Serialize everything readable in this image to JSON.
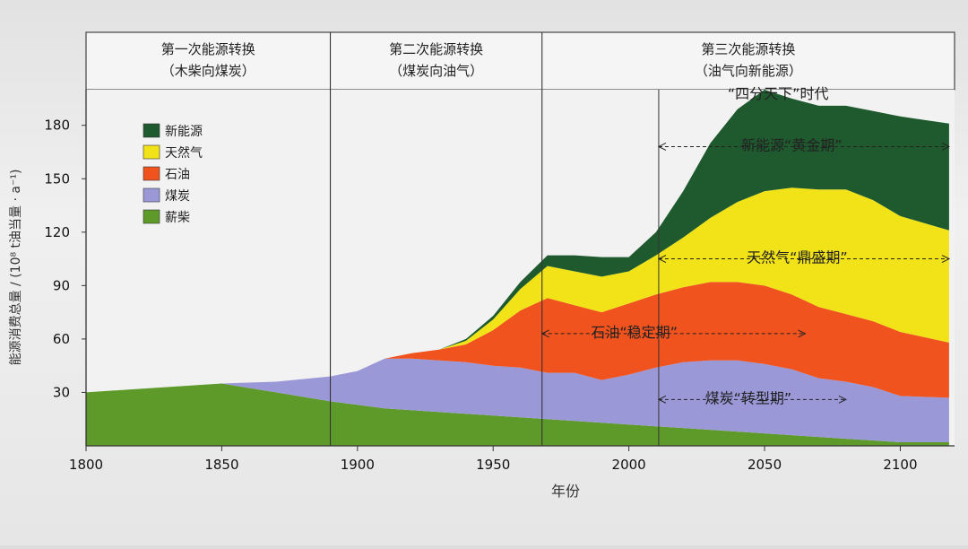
{
  "chart_data": {
    "type": "area",
    "stacked": true,
    "xlabel": "年份",
    "ylabel": "能源消费总量 / (10⁸ t油当量 · a⁻¹)",
    "xlim": [
      1800,
      2120
    ],
    "ylim": [
      0,
      200
    ],
    "x_ticks": [
      1800,
      1850,
      1900,
      1950,
      2000,
      2050,
      2100
    ],
    "y_ticks": [
      30,
      60,
      90,
      120,
      150,
      180
    ],
    "phases": [
      {
        "title": "第一次能源转换",
        "subtitle": "（木柴向煤炭）",
        "start": 1800,
        "end": 1890
      },
      {
        "title": "第二次能源转换",
        "subtitle": "（煤炭向油气）",
        "start": 1890,
        "end": 1968
      },
      {
        "title": "第三次能源转换",
        "subtitle": "（油气向新能源）",
        "start": 1968,
        "end": 2120
      }
    ],
    "x": [
      1800,
      1850,
      1870,
      1890,
      1900,
      1910,
      1920,
      1930,
      1940,
      1950,
      1960,
      1970,
      1980,
      1990,
      2000,
      2010,
      2020,
      2030,
      2040,
      2050,
      2060,
      2070,
      2080,
      2090,
      2100,
      2118
    ],
    "series": [
      {
        "name": "薪柴",
        "color": "#5e9a2a",
        "values": [
          30,
          35,
          30,
          25,
          23,
          21,
          20,
          19,
          18,
          17,
          16,
          15,
          14,
          13,
          12,
          11,
          10,
          9,
          8,
          7,
          6,
          5,
          4,
          3,
          2,
          2
        ]
      },
      {
        "name": "煤炭",
        "color": "#9b98d8",
        "values": [
          0,
          0,
          6,
          14,
          19,
          28,
          29,
          29,
          29,
          28,
          28,
          26,
          27,
          24,
          28,
          33,
          37,
          39,
          40,
          39,
          37,
          33,
          32,
          30,
          26,
          25
        ]
      },
      {
        "name": "石油",
        "color": "#f0531e",
        "values": [
          0,
          0,
          0,
          0,
          0,
          0,
          3,
          6,
          10,
          20,
          32,
          42,
          38,
          38,
          40,
          41,
          42,
          44,
          44,
          44,
          42,
          40,
          38,
          37,
          36,
          31
        ]
      },
      {
        "name": "天然气",
        "color": "#f2e318",
        "values": [
          0,
          0,
          0,
          0,
          0,
          0,
          0,
          0,
          2,
          6,
          12,
          18,
          19,
          20,
          18,
          22,
          28,
          36,
          45,
          53,
          60,
          66,
          70,
          68,
          65,
          63
        ]
      },
      {
        "name": "新能源",
        "color": "#1f5a2e",
        "values": [
          0,
          0,
          0,
          0,
          0,
          0,
          0,
          0,
          1,
          2,
          4,
          6,
          9,
          11,
          8,
          13,
          26,
          42,
          52,
          57,
          50,
          47,
          47,
          50,
          56,
          60
        ]
      }
    ],
    "annotations": [
      {
        "text": "“四分天下”时代",
        "x": 2055,
        "y": 195
      },
      {
        "text": "新能源“黄金期”",
        "x": 2060,
        "y": 166,
        "from": 2011,
        "to": 2118
      },
      {
        "text": "天然气“鼎盛期”",
        "x": 2062,
        "y": 103,
        "from": 2011,
        "to": 2118
      },
      {
        "text": "石油“稳定期”",
        "x": 2002,
        "y": 61,
        "from": 1968,
        "to": 2065
      },
      {
        "text": "煤炭“转型期”",
        "x": 2044,
        "y": 24,
        "from": 2011,
        "to": 2080
      }
    ],
    "legend_position": "top-left",
    "legend": [
      "新能源",
      "天然气",
      "石油",
      "煤炭",
      "薪柴"
    ]
  }
}
